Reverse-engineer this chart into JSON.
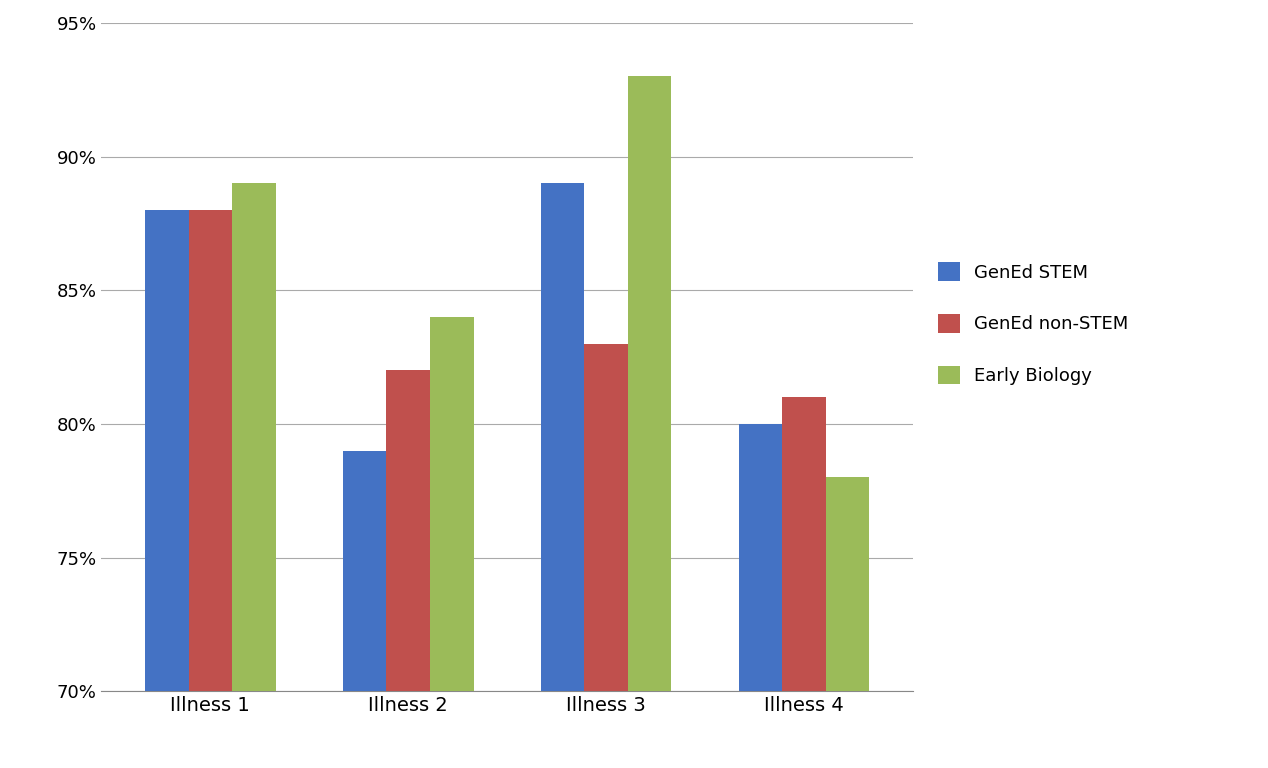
{
  "categories": [
    "Illness 1",
    "Illness 2",
    "Illness 3",
    "Illness 4"
  ],
  "series": [
    {
      "label": "GenEd STEM",
      "values": [
        88,
        79,
        89,
        80
      ],
      "color": "#4472C4"
    },
    {
      "label": "GenEd non-STEM",
      "values": [
        88,
        82,
        83,
        81
      ],
      "color": "#C0504D"
    },
    {
      "label": "Early Biology",
      "values": [
        89,
        84,
        93,
        78
      ],
      "color": "#9BBB59"
    }
  ],
  "ylim": [
    70,
    95
  ],
  "yticks": [
    70,
    75,
    80,
    85,
    90,
    95
  ],
  "ytick_labels": [
    "70%",
    "75%",
    "80%",
    "85%",
    "90%",
    "95%"
  ],
  "background_color": "#FFFFFF",
  "grid_color": "#AAAAAA",
  "bar_width": 0.22,
  "legend_fontsize": 13,
  "tick_fontsize": 13,
  "xlabel_fontsize": 14
}
